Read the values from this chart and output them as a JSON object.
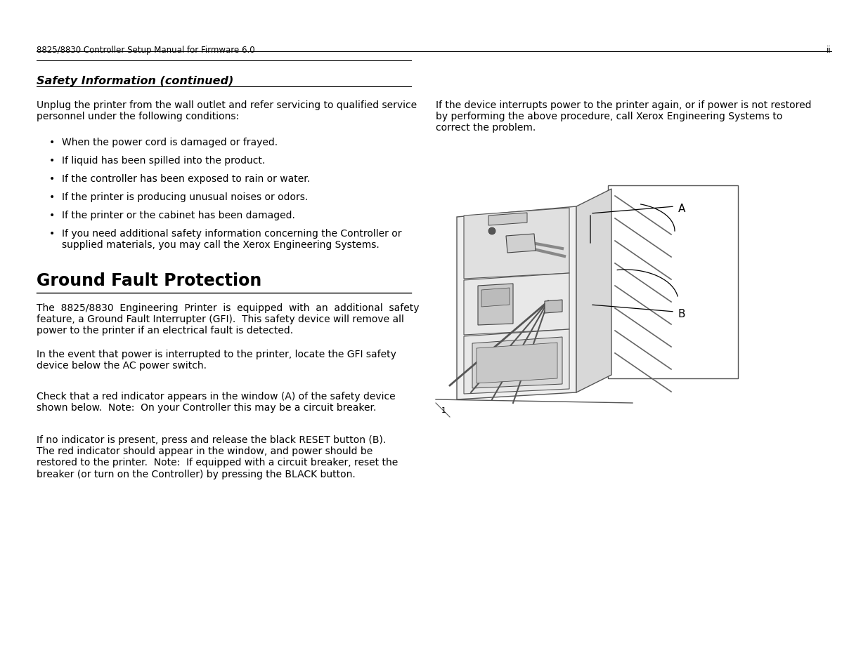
{
  "bg_color": "#ffffff",
  "text_color": "#000000",
  "header_text": "8825/8830 Controller Setup Manual for Firmware 6.0",
  "header_right": "ii",
  "section1_title": "Safety Information (continued)",
  "section1_intro": "Unplug the printer from the wall outlet and refer servicing to qualified service\npersonnel under the following conditions:",
  "bullets": [
    "When the power cord is damaged or frayed.",
    "If liquid has been spilled into the product.",
    "If the controller has been exposed to rain or water.",
    "If the printer is producing unusual noises or odors.",
    "If the printer or the cabinet has been damaged.",
    "If you need additional safety information concerning the Controller or\nsupplied materials, you may call the Xerox Engineering Systems."
  ],
  "right_para": "If the device interrupts power to the printer again, or if power is not restored\nby performing the above procedure, call Xerox Engineering Systems to\ncorrect the problem.",
  "section2_title": "Ground Fault Protection",
  "section2_para1": "The  8825/8830  Engineering  Printer  is  equipped  with  an  additional  safety\nfeature, a Ground Fault Interrupter (GFI).  This safety device will remove all\npower to the printer if an electrical fault is detected.",
  "section2_para2": "In the event that power is interrupted to the printer, locate the GFI safety\ndevice below the AC power switch.",
  "section2_para3": "Check that a red indicator appears in the window (A) of the safety device\nshown below.  Note:  On your Controller this may be a circuit breaker.",
  "section2_para4": "If no indicator is present, press and release the black RESET button (B).\nThe red indicator should appear in the window, and power should be\nrestored to the printer.  Note:  If equipped with a circuit breaker, reset the\nbreaker (or turn on the Controller) by pressing the BLACK button.",
  "fs_header": 8.5,
  "fs_body": 10.0,
  "fs_sec1": 11.5,
  "fs_sec2": 17
}
